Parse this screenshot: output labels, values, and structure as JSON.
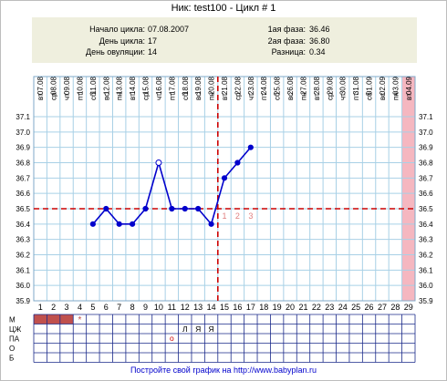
{
  "title": "Ник: test100 - Цикл # 1",
  "info": {
    "cycle_start_label": "Начало цикла:",
    "cycle_start_value": "07.08.2007",
    "cycle_day_label": "День цикла:",
    "cycle_day_value": "17",
    "ovulation_day_label": "День овуляции:",
    "ovulation_day_value": "14",
    "phase1_label": "1ая фаза:",
    "phase1_value": "36.46",
    "phase2_label": "2ая фаза:",
    "phase2_value": "36.80",
    "diff_label": "Разница:",
    "diff_value": "0.34"
  },
  "footer": "Постройте свой график на http://www.babyplan.ru",
  "colors": {
    "line": "#0000cc",
    "grid": "#a8d0e6",
    "coverline": "#cc0000",
    "ovulation_line": "#cc0000",
    "shade": "#f5b7c0",
    "menses_bar": "#c0504d",
    "info_bg": "#efefde"
  },
  "chart_data": {
    "type": "line",
    "title": "",
    "xlabel": "",
    "ylabel": "",
    "ylim": [
      35.9,
      37.1
    ],
    "y_ticks": [
      "37.1",
      "37.0",
      "36.9",
      "36.8",
      "36.7",
      "36.6",
      "36.5",
      "36.4",
      "36.3",
      "36.2",
      "36.1",
      "36.0",
      "35.9"
    ],
    "days": [
      "1",
      "2",
      "3",
      "4",
      "5",
      "6",
      "7",
      "8",
      "9",
      "10",
      "11",
      "12",
      "13",
      "14",
      "15",
      "16",
      "17",
      "18",
      "19",
      "20",
      "21",
      "22",
      "23",
      "24",
      "25",
      "26",
      "27",
      "28",
      "29"
    ],
    "weekdays": [
      "вт",
      "ср",
      "чт",
      "пт",
      "сб",
      "вс",
      "пн",
      "вт",
      "ср",
      "чт",
      "пт",
      "сб",
      "вс",
      "пн",
      "вт",
      "ср",
      "чт",
      "пт",
      "сб",
      "вс",
      "пн",
      "вт",
      "ср",
      "чт",
      "пт",
      "сб",
      "вс",
      "пн",
      "вт"
    ],
    "dates": [
      "07.08",
      "08.08",
      "09.08",
      "10.08",
      "11.08",
      "12.08",
      "13.08",
      "14.08",
      "15.08",
      "16.08",
      "17.08",
      "18.08",
      "19.08",
      "20.08",
      "21.08",
      "22.08",
      "23.08",
      "24.08",
      "25.08",
      "26.08",
      "27.08",
      "28.08",
      "29.08",
      "30.08",
      "31.08",
      "01.09",
      "02.09",
      "03.09",
      "04.09"
    ],
    "x": [
      5,
      6,
      7,
      8,
      9,
      10,
      11,
      12,
      13,
      14,
      15,
      16,
      17
    ],
    "series": [
      {
        "values": [
          36.4,
          36.5,
          36.4,
          36.4,
          36.5,
          36.8,
          36.5,
          36.5,
          36.5,
          36.4,
          36.7,
          36.8,
          36.9
        ]
      }
    ],
    "open_marker_day": 10,
    "coverline": 36.5,
    "ovulation_day": 14,
    "post_ovulation_labels": [
      "1",
      "2",
      "3"
    ],
    "shaded_day": 29,
    "grid": true
  },
  "rows": {
    "labels": [
      "М",
      "ЦЖ",
      "ПА",
      "О",
      "Б"
    ],
    "menses_days": [
      1,
      2,
      3
    ],
    "menses_star_day": 4,
    "menses_star": "*",
    "cervical": [
      {
        "day": 12,
        "text": "Л"
      },
      {
        "day": 13,
        "text": "Я"
      },
      {
        "day": 14,
        "text": "Я"
      }
    ],
    "intercourse": [
      {
        "day": 11,
        "text": "о"
      }
    ]
  }
}
